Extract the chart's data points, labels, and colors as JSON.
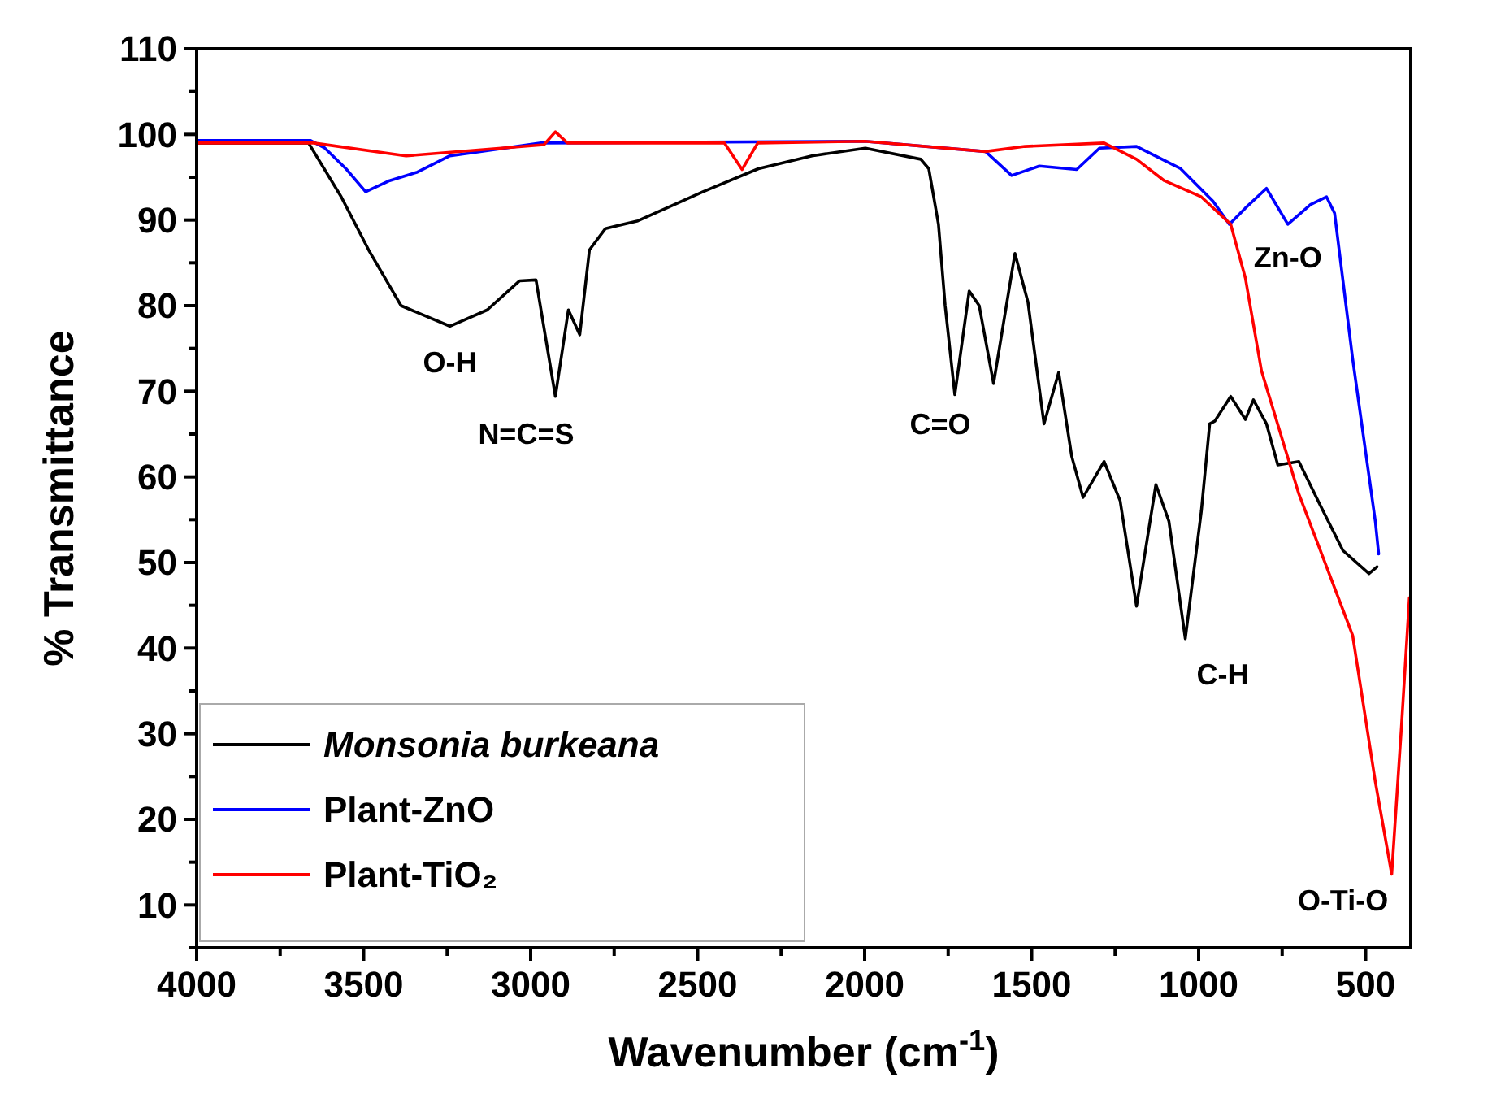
{
  "chart_data": {
    "type": "line",
    "xlabel": "Wavenumber (cm$^{-1}$)",
    "ylabel": "% Transmittance",
    "xlim": [
      4000,
      365
    ],
    "ylim": [
      5,
      110
    ],
    "xticks": [
      4000,
      {
        "value": 3750,
        "label": null
      },
      3500,
      {
        "value": 3250,
        "label": null
      },
      3000,
      {
        "value": 2750,
        "label": null
      },
      2500,
      {
        "value": 2250,
        "label": null
      },
      2000,
      {
        "value": 1750,
        "label": null
      },
      1500,
      {
        "value": 1250,
        "label": null
      },
      1000,
      {
        "value": 750,
        "label": null
      },
      500
    ],
    "yticks": [
      {
        "value": 5,
        "label": null
      },
      10,
      {
        "value": 15,
        "label": null
      },
      20,
      {
        "value": 25,
        "label": null
      },
      30,
      {
        "value": 35,
        "label": null
      },
      40,
      {
        "value": 45,
        "label": null
      },
      50,
      {
        "value": 55,
        "label": null
      },
      60,
      {
        "value": 65,
        "label": null
      },
      70,
      {
        "value": 75,
        "label": null
      },
      80,
      {
        "value": 85,
        "label": null
      },
      90,
      {
        "value": 95,
        "label": null
      },
      100,
      {
        "value": 105,
        "label": null
      },
      110
    ],
    "grid": false,
    "legend": "bottom left",
    "line_style": "solid",
    "marker": "none",
    "series": [
      {
        "name": "Monsonia burkeana",
        "color": "#000000",
        "x": [
          4000,
          3665,
          3567,
          3485,
          3388,
          3242,
          3130,
          3033,
          2984,
          2926,
          2887,
          2853,
          2824,
          2776,
          2679,
          2484,
          2318,
          2158,
          1998,
          1832,
          1808,
          1779,
          1759,
          1730,
          1687,
          1657,
          1614,
          1550,
          1511,
          1463,
          1419,
          1380,
          1346,
          1283,
          1235,
          1186,
          1128,
          1089,
          1040,
          992,
          967,
          952,
          904,
          860,
          836,
          797,
          763,
          700,
          636,
          568,
          490,
          466
        ],
        "values": [
          99,
          99,
          92.7,
          86.5,
          80,
          77.6,
          79.5,
          82.9,
          83,
          69.4,
          79.5,
          76.6,
          86.5,
          89,
          89.9,
          93.3,
          96,
          97.5,
          98.4,
          97.1,
          96,
          89.5,
          80,
          69.6,
          81.7,
          80,
          70.9,
          86.1,
          80.4,
          66.2,
          72.2,
          62.4,
          57.6,
          61.8,
          57.2,
          44.9,
          59.1,
          54.8,
          41.1,
          56,
          66.2,
          66.5,
          69.4,
          66.7,
          69,
          66.2,
          61.4,
          61.8,
          56.7,
          51.4,
          48.7,
          49.5
        ]
      },
      {
        "name": "Plant-ZnO",
        "color": "#0000ff",
        "x": [
          4000,
          3660,
          3616,
          3553,
          3494,
          3422,
          3339,
          3242,
          2969,
          2000,
          1638,
          1560,
          1477,
          1365,
          1297,
          1186,
          1054,
          957,
          908,
          860,
          797,
          733,
          665,
          617,
          593,
          539,
          471,
          461
        ],
        "values": [
          99.3,
          99.3,
          98.4,
          96,
          93.3,
          94.6,
          95.6,
          97.5,
          99,
          99.2,
          98,
          95.2,
          96.3,
          95.9,
          98.4,
          98.6,
          96,
          92.2,
          89.5,
          91.4,
          93.7,
          89.5,
          91.8,
          92.7,
          90.8,
          73.8,
          54.8,
          51
        ]
      },
      {
        "name": "Plant-TiO₂",
        "color": "#ff0000",
        "x": [
          4000,
          3650,
          3373,
          2960,
          2926,
          2890,
          2420,
          2367,
          2320,
          2000,
          1638,
          1520,
          1283,
          1186,
          1103,
          992,
          904,
          860,
          812,
          700,
          539,
          471,
          422,
          393,
          369
        ],
        "values": [
          99,
          99,
          97.5,
          98.8,
          100.3,
          99,
          99,
          95.9,
          99,
          99.2,
          98,
          98.6,
          99,
          97.1,
          94.6,
          92.7,
          89.5,
          83.2,
          72.4,
          58,
          41.5,
          24.4,
          13.6,
          30.7,
          45.9
        ]
      }
    ],
    "annotations": [
      {
        "text": "O-H",
        "x": 3242,
        "y": 77.6
      },
      {
        "text": "N=C=S",
        "x": 2926,
        "y": 69.4
      },
      {
        "text": "C=O",
        "x": 1730,
        "y": 69.6
      },
      {
        "text": "C-H",
        "x": 1040,
        "y": 41.1
      },
      {
        "text": "Zn-O",
        "x": 908,
        "y": 89.5
      },
      {
        "text": "O-Ti-O",
        "x": 422,
        "y": 13.6
      }
    ]
  }
}
